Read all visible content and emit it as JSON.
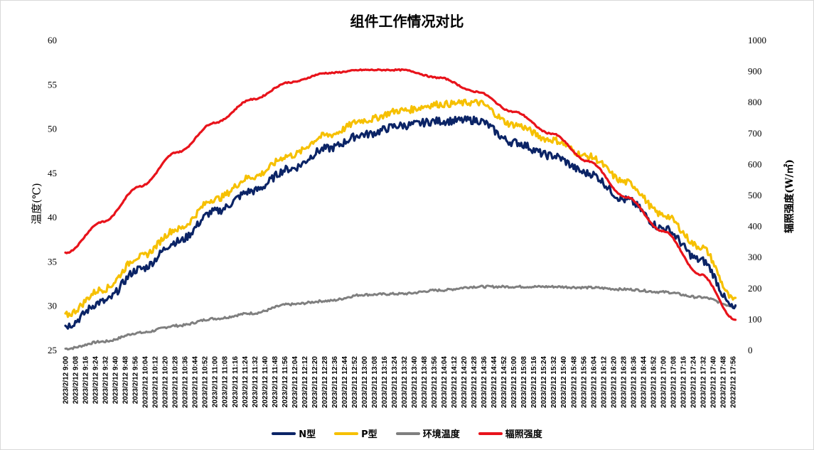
{
  "chart_data": {
    "type": "line",
    "title": "组件工作情况对比",
    "ylabel_left": "温度(℃)",
    "ylabel_right": "辐照强度(W/㎡)",
    "y_left": {
      "lim": [
        25,
        60
      ],
      "ticks": [
        25,
        30,
        35,
        40,
        45,
        50,
        55,
        60
      ]
    },
    "y_right": {
      "lim": [
        0,
        1000
      ],
      "ticks": [
        0,
        100,
        200,
        300,
        400,
        500,
        600,
        700,
        800,
        900,
        1000
      ]
    },
    "x_start": "9:00",
    "x_end": "18:00",
    "x_tick_prefix": "2023/2/12",
    "x_ticks": [
      "9:00",
      "9:08",
      "9:16",
      "9:24",
      "9:32",
      "9:40",
      "9:48",
      "9:56",
      "10:04",
      "10:12",
      "10:20",
      "10:28",
      "10:36",
      "10:44",
      "10:52",
      "11:00",
      "11:08",
      "11:16",
      "11:24",
      "11:32",
      "11:40",
      "11:48",
      "11:56",
      "12:04",
      "12:12",
      "12:20",
      "12:28",
      "12:36",
      "12:44",
      "12:52",
      "13:00",
      "13:08",
      "13:16",
      "13:24",
      "13:32",
      "13:40",
      "13:48",
      "13:56",
      "14:04",
      "14:12",
      "14:20",
      "14:28",
      "14:36",
      "14:44",
      "14:52",
      "15:00",
      "15:08",
      "15:16",
      "15:24",
      "15:32",
      "15:40",
      "15:48",
      "15:56",
      "16:04",
      "16:12",
      "16:20",
      "16:28",
      "16:36",
      "16:44",
      "16:52",
      "17:00",
      "17:08",
      "17:16",
      "17:24",
      "17:32",
      "17:40",
      "17:48",
      "17:56"
    ],
    "x_tick_labels": [
      "2023/2/12 9:00",
      "2023/2/12 9:08",
      "2023/2/12 9:16",
      "2023/2/12 9:24",
      "2023/2/12 9:32",
      "2023/2/12 9:40",
      "2023/2/12 9:48",
      "2023/2/12 9:56",
      "2023/2/12 10:04",
      "2023/2/12 10:12",
      "2023/2/12 10:20",
      "2023/2/12 10:28",
      "2023/2/12 10:36",
      "2023/2/12 10:44",
      "2023/2/12 10:52",
      "2023/2/12 11:00",
      "2023/2/12 11:08",
      "2023/2/12 11:16",
      "2023/2/12 11:24",
      "2023/2/12 11:32",
      "2023/2/12 11:40",
      "2023/2/12 11:48",
      "2023/2/12 11:56",
      "2023/2/12 12:04",
      "2023/2/12 12:12",
      "2023/2/12 12:20",
      "2023/2/12 12:28",
      "2023/2/12 12:36",
      "2023/2/12 12:44",
      "2023/2/12 12:52",
      "2023/2/12 13:00",
      "2023/2/12 13:08",
      "2023/2/12 13:16",
      "2023/2/12 13:24",
      "2023/2/12 13:32",
      "2023/2/12 13:40",
      "2023/2/12 13:48",
      "2023/2/12 13:56",
      "2023/2/12 14:04",
      "2023/2/12 14:12",
      "2023/2/12 14:20",
      "2023/2/12 14:28",
      "2023/2/12 14:36",
      "2023/2/12 14:44",
      "2023/2/12 14:52",
      "2023/2/12 15:00",
      "2023/2/12 15:08",
      "2023/2/12 15:16",
      "2023/2/12 15:24",
      "2023/2/12 15:32",
      "2023/2/12 15:40",
      "2023/2/12 15:48",
      "2023/2/12 15:56",
      "2023/2/12 16:04",
      "2023/2/12 16:12",
      "2023/2/12 16:20",
      "2023/2/12 16:28",
      "2023/2/12 16:36",
      "2023/2/12 16:44",
      "2023/2/12 16:52",
      "2023/2/12 17:00",
      "2023/2/12 17:08",
      "2023/2/12 17:16",
      "2023/2/12 17:24",
      "2023/2/12 17:32",
      "2023/2/12 17:40",
      "2023/2/12 17:48",
      "2023/2/12 17:56"
    ],
    "series": [
      {
        "name": "N型",
        "axis": "left",
        "color": "#0b2466",
        "x": [
          "9:00",
          "9:30",
          "10:00",
          "10:30",
          "11:00",
          "11:30",
          "12:00",
          "12:30",
          "13:00",
          "13:30",
          "14:00",
          "14:30",
          "15:00",
          "15:30",
          "16:00",
          "16:30",
          "17:00",
          "17:30",
          "17:58"
        ],
        "values": [
          27.8,
          30.5,
          34.2,
          37.3,
          40.7,
          43.0,
          45.5,
          47.8,
          49.4,
          50.4,
          50.9,
          51.0,
          48.5,
          47.0,
          45.0,
          42.0,
          38.8,
          35.2,
          29.7
        ]
      },
      {
        "name": "P型",
        "axis": "left",
        "color": "#f6c000",
        "x": [
          "9:00",
          "9:30",
          "10:00",
          "10:30",
          "11:00",
          "11:30",
          "12:00",
          "12:30",
          "13:00",
          "13:30",
          "14:00",
          "14:30",
          "15:00",
          "15:30",
          "16:00",
          "16:30",
          "17:00",
          "17:30",
          "17:58"
        ],
        "values": [
          29.0,
          31.9,
          35.6,
          38.7,
          42.1,
          44.6,
          47.0,
          49.3,
          51.0,
          52.1,
          52.8,
          53.0,
          50.5,
          48.8,
          46.9,
          44.0,
          40.3,
          36.7,
          30.6
        ]
      },
      {
        "name": "环境温度",
        "axis": "left",
        "color": "#7f7f7f",
        "x": [
          "9:00",
          "9:30",
          "10:00",
          "10:30",
          "11:00",
          "11:30",
          "12:00",
          "12:30",
          "13:00",
          "13:30",
          "14:00",
          "14:30",
          "15:00",
          "15:30",
          "16:00",
          "16:30",
          "17:00",
          "17:30",
          "17:58"
        ],
        "values": [
          25.2,
          26.0,
          27.0,
          27.8,
          28.6,
          29.2,
          30.2,
          30.6,
          31.3,
          31.4,
          31.8,
          32.2,
          32.2,
          32.2,
          32.1,
          31.9,
          31.6,
          31.0,
          30.0
        ]
      },
      {
        "name": "辐照强度",
        "axis": "right",
        "color": "#e8131b",
        "x": [
          "9:00",
          "9:30",
          "10:00",
          "10:30",
          "11:00",
          "11:30",
          "12:00",
          "12:30",
          "13:00",
          "13:30",
          "14:00",
          "14:30",
          "15:00",
          "15:30",
          "16:00",
          "16:30",
          "17:00",
          "17:30",
          "17:58"
        ],
        "values": [
          315,
          415,
          530,
          640,
          735,
          810,
          865,
          895,
          905,
          905,
          880,
          835,
          770,
          700,
          610,
          495,
          385,
          245,
          100
        ]
      }
    ]
  }
}
